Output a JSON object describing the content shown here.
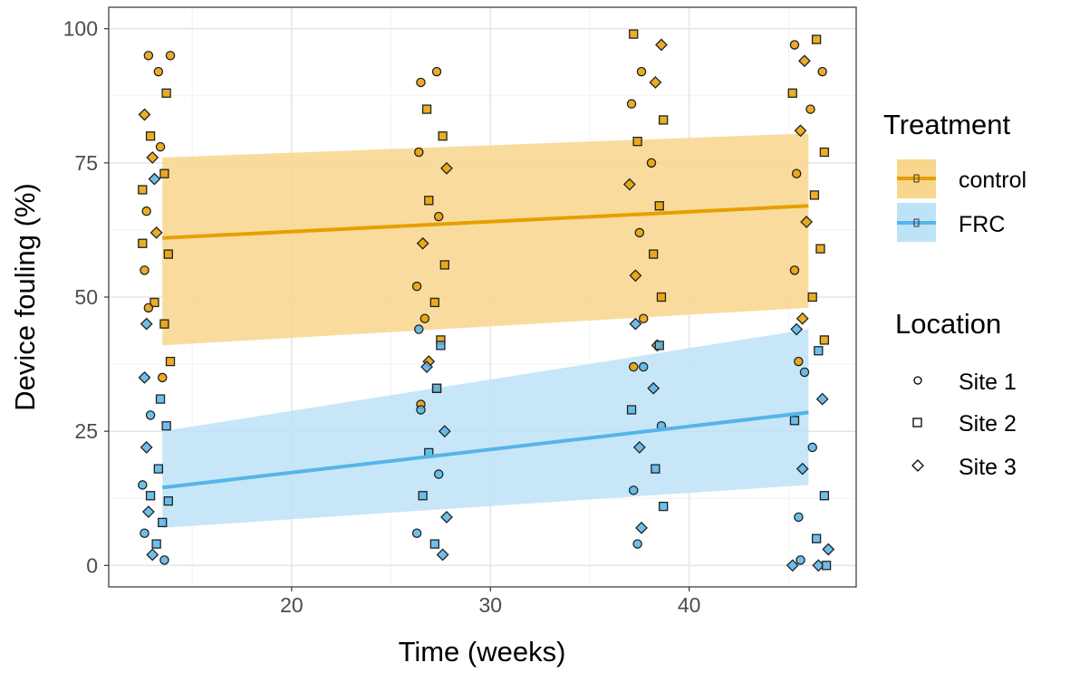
{
  "chart_data": {
    "type": "scatter",
    "xlabel": "Time (weeks)",
    "ylabel": "Device fouling (%)",
    "xlim": [
      10.8,
      48.4
    ],
    "ylim": [
      -4,
      104
    ],
    "xticks": [
      20,
      30,
      40
    ],
    "yticks": [
      0,
      25,
      50,
      75,
      100
    ],
    "grid": true,
    "colors": {
      "control": "#E69F00",
      "FRC": "#56B4E9",
      "control_ribbon": "#F8D68C",
      "FRC_ribbon": "#BDE3F7"
    },
    "legend": {
      "placement": "right",
      "treatment_title": "Treatment",
      "treatments": [
        "control",
        "FRC"
      ],
      "location_title": "Location",
      "locations": [
        "Site 1",
        "Site 2",
        "Site 3"
      ]
    },
    "fits": [
      {
        "treatment": "control",
        "x": [
          13.5,
          46
        ],
        "y": [
          61,
          67
        ],
        "lower": [
          41,
          48
        ],
        "upper": [
          76,
          80.5
        ]
      },
      {
        "treatment": "FRC",
        "x": [
          13.5,
          46
        ],
        "y": [
          14.5,
          28.5
        ],
        "lower": [
          7,
          15
        ],
        "upper": [
          25,
          44
        ]
      }
    ],
    "series": [
      {
        "name": "control",
        "points": [
          [
            12.8,
            95,
            1
          ],
          [
            13.9,
            95,
            1
          ],
          [
            13.3,
            92,
            1
          ],
          [
            12.6,
            84,
            3
          ],
          [
            13.7,
            88,
            2
          ],
          [
            12.9,
            80,
            2
          ],
          [
            13.4,
            78,
            1
          ],
          [
            12.5,
            70,
            2
          ],
          [
            13.6,
            73,
            2
          ],
          [
            12.7,
            66,
            1
          ],
          [
            13.2,
            62,
            3
          ],
          [
            13.8,
            58,
            2
          ],
          [
            12.6,
            55,
            1
          ],
          [
            13.1,
            49,
            2
          ],
          [
            12.8,
            48,
            1
          ],
          [
            13.6,
            45,
            2
          ],
          [
            13.9,
            38,
            2
          ],
          [
            13.5,
            35,
            1
          ],
          [
            13.0,
            76,
            3
          ],
          [
            12.5,
            60,
            2
          ],
          [
            26.5,
            90,
            1
          ],
          [
            27.3,
            92,
            1
          ],
          [
            26.8,
            85,
            2
          ],
          [
            27.6,
            80,
            2
          ],
          [
            26.4,
            77,
            1
          ],
          [
            27.8,
            74,
            3
          ],
          [
            26.9,
            68,
            2
          ],
          [
            27.4,
            65,
            1
          ],
          [
            26.6,
            60,
            3
          ],
          [
            27.7,
            56,
            2
          ],
          [
            26.3,
            52,
            1
          ],
          [
            27.2,
            49,
            2
          ],
          [
            26.7,
            46,
            1
          ],
          [
            27.5,
            42,
            2
          ],
          [
            26.9,
            38,
            3
          ],
          [
            27.3,
            33,
            2
          ],
          [
            26.5,
            30,
            1
          ],
          [
            37.2,
            99,
            2
          ],
          [
            38.6,
            97,
            3
          ],
          [
            37.6,
            92,
            1
          ],
          [
            38.3,
            90,
            3
          ],
          [
            37.1,
            86,
            1
          ],
          [
            38.7,
            83,
            2
          ],
          [
            37.4,
            79,
            2
          ],
          [
            38.1,
            75,
            1
          ],
          [
            37.0,
            71,
            3
          ],
          [
            38.5,
            67,
            2
          ],
          [
            37.5,
            62,
            1
          ],
          [
            38.2,
            58,
            2
          ],
          [
            37.3,
            54,
            3
          ],
          [
            38.6,
            50,
            2
          ],
          [
            37.7,
            46,
            1
          ],
          [
            38.4,
            41,
            3
          ],
          [
            37.2,
            37,
            1
          ],
          [
            45.3,
            97,
            1
          ],
          [
            46.4,
            98,
            2
          ],
          [
            45.8,
            94,
            3
          ],
          [
            46.7,
            92,
            1
          ],
          [
            45.2,
            88,
            2
          ],
          [
            46.1,
            85,
            1
          ],
          [
            45.6,
            81,
            3
          ],
          [
            46.8,
            77,
            2
          ],
          [
            45.4,
            73,
            1
          ],
          [
            46.3,
            69,
            2
          ],
          [
            45.9,
            64,
            3
          ],
          [
            46.6,
            59,
            2
          ],
          [
            45.3,
            55,
            1
          ],
          [
            46.2,
            50,
            2
          ],
          [
            45.7,
            46,
            3
          ],
          [
            46.8,
            42,
            2
          ],
          [
            45.5,
            38,
            1
          ]
        ]
      },
      {
        "name": "FRC",
        "points": [
          [
            12.6,
            35,
            3
          ],
          [
            13.4,
            31,
            2
          ],
          [
            12.9,
            28,
            1
          ],
          [
            13.7,
            26,
            2
          ],
          [
            12.7,
            22,
            3
          ],
          [
            13.3,
            18,
            2
          ],
          [
            12.5,
            15,
            1
          ],
          [
            13.8,
            12,
            2
          ],
          [
            12.8,
            10,
            3
          ],
          [
            13.5,
            8,
            2
          ],
          [
            12.6,
            6,
            1
          ],
          [
            13.2,
            4,
            2
          ],
          [
            13.0,
            2,
            3
          ],
          [
            13.6,
            1,
            1
          ],
          [
            12.9,
            13,
            2
          ],
          [
            13.1,
            72,
            3
          ],
          [
            12.7,
            45,
            3
          ],
          [
            26.4,
            44,
            1
          ],
          [
            27.5,
            41,
            2
          ],
          [
            26.8,
            37,
            3
          ],
          [
            27.3,
            33,
            2
          ],
          [
            26.5,
            29,
            1
          ],
          [
            27.7,
            25,
            3
          ],
          [
            26.9,
            21,
            2
          ],
          [
            27.4,
            17,
            1
          ],
          [
            26.6,
            13,
            2
          ],
          [
            27.8,
            9,
            3
          ],
          [
            26.3,
            6,
            1
          ],
          [
            27.2,
            4,
            2
          ],
          [
            27.6,
            2,
            3
          ],
          [
            37.3,
            45,
            3
          ],
          [
            38.5,
            41,
            2
          ],
          [
            37.7,
            37,
            1
          ],
          [
            38.2,
            33,
            3
          ],
          [
            37.1,
            29,
            2
          ],
          [
            38.6,
            26,
            1
          ],
          [
            37.5,
            22,
            3
          ],
          [
            38.3,
            18,
            2
          ],
          [
            37.2,
            14,
            1
          ],
          [
            38.7,
            11,
            2
          ],
          [
            37.6,
            7,
            3
          ],
          [
            37.4,
            4,
            1
          ],
          [
            45.4,
            44,
            3
          ],
          [
            46.5,
            40,
            2
          ],
          [
            45.8,
            36,
            1
          ],
          [
            46.7,
            31,
            3
          ],
          [
            45.3,
            27,
            2
          ],
          [
            46.2,
            22,
            1
          ],
          [
            45.7,
            18,
            3
          ],
          [
            46.8,
            13,
            2
          ],
          [
            45.5,
            9,
            1
          ],
          [
            46.4,
            5,
            2
          ],
          [
            45.6,
            1,
            1
          ],
          [
            45.2,
            0,
            3
          ],
          [
            46.5,
            0,
            3
          ],
          [
            46.9,
            0,
            2
          ],
          [
            47.0,
            3,
            3
          ]
        ]
      }
    ]
  }
}
